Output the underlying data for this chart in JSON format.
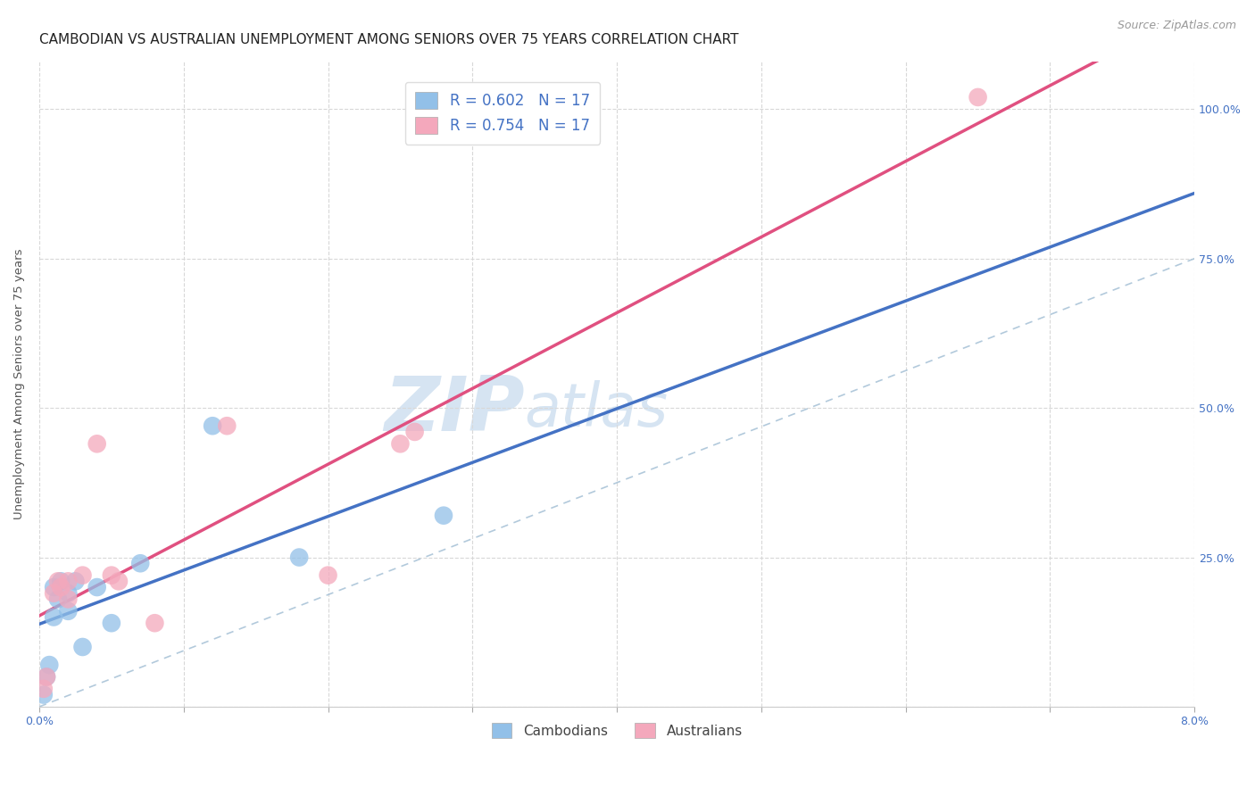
{
  "title": "CAMBODIAN VS AUSTRALIAN UNEMPLOYMENT AMONG SENIORS OVER 75 YEARS CORRELATION CHART",
  "source": "Source: ZipAtlas.com",
  "ylabel": "Unemployment Among Seniors over 75 years",
  "xlim": [
    0.0,
    0.08
  ],
  "ylim": [
    0.0,
    1.08
  ],
  "cambodian_scatter_x": [
    0.0003,
    0.0005,
    0.0007,
    0.001,
    0.001,
    0.0013,
    0.0015,
    0.002,
    0.002,
    0.0025,
    0.003,
    0.004,
    0.005,
    0.007,
    0.012,
    0.018,
    0.028
  ],
  "cambodian_scatter_y": [
    0.02,
    0.05,
    0.07,
    0.2,
    0.15,
    0.18,
    0.21,
    0.16,
    0.19,
    0.21,
    0.1,
    0.2,
    0.14,
    0.24,
    0.47,
    0.25,
    0.32
  ],
  "australian_scatter_x": [
    0.0003,
    0.0005,
    0.001,
    0.0013,
    0.0015,
    0.002,
    0.002,
    0.003,
    0.004,
    0.005,
    0.0055,
    0.008,
    0.013,
    0.02,
    0.025,
    0.026,
    0.065
  ],
  "australian_scatter_y": [
    0.03,
    0.05,
    0.19,
    0.21,
    0.2,
    0.18,
    0.21,
    0.22,
    0.44,
    0.22,
    0.21,
    0.14,
    0.47,
    0.22,
    0.44,
    0.46,
    1.02
  ],
  "cambodian_color": "#92c0e8",
  "australian_color": "#f4a8bc",
  "cambodian_line_color": "#4472c4",
  "australian_line_color": "#e05080",
  "ref_line_color": "#aac4d8",
  "legend_cambodian_label": "R = 0.602   N = 17",
  "legend_australian_label": "R = 0.754   N = 17",
  "legend_label_cambodians": "Cambodians",
  "legend_label_australians": "Australians",
  "background_color": "#ffffff",
  "grid_color": "#d8d8d8",
  "title_fontsize": 11,
  "axis_label_fontsize": 9.5,
  "tick_fontsize": 9,
  "source_fontsize": 9,
  "right_tick_color": "#4472c4",
  "watermark_color": "#cfe0f0"
}
